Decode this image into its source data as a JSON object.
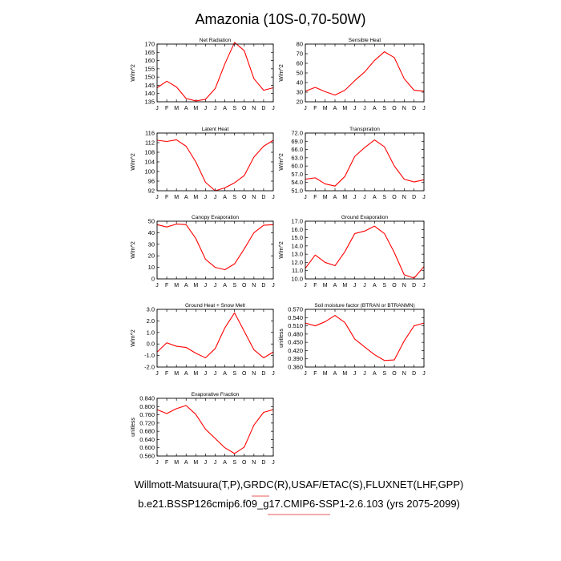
{
  "figure": {
    "title": "Amazonia (10S-0,70-50W)",
    "footer_line1": "Willmott-Matsuura(T,P),GRDC(R),USAF/ETAC(S),FLUXNET(LHF,GPP)",
    "footer_line2": "b.e21.BSSP126cmip6.f09_g17.CMIP6-SSP1-2.6.103 (yrs 2075-2099)"
  },
  "colors": {
    "series": "#ff0000",
    "axis": "#000000",
    "underline": "#e02020"
  },
  "chart_data": [
    {
      "type": "line",
      "title": "Net Radiation",
      "ylabel": "W/m^2",
      "categories": [
        "J",
        "F",
        "M",
        "A",
        "M",
        "J",
        "J",
        "A",
        "S",
        "O",
        "N",
        "D",
        "J"
      ],
      "ylim": [
        135,
        170
      ],
      "yticks": [
        "135",
        "140",
        "145",
        "150",
        "155",
        "160",
        "165",
        "170"
      ],
      "yticks_values": [
        135,
        140,
        145,
        150,
        155,
        160,
        165,
        170
      ],
      "series": [
        {
          "name": "Net Radiation",
          "values": [
            143.5,
            147.5,
            144,
            137,
            135.5,
            136.5,
            143,
            158,
            171,
            166,
            149,
            142,
            143.5
          ]
        }
      ]
    },
    {
      "type": "line",
      "title": "Sensible Heat",
      "ylabel": "W/m^2",
      "categories": [
        "J",
        "F",
        "M",
        "A",
        "M",
        "J",
        "J",
        "A",
        "S",
        "O",
        "N",
        "D",
        "J"
      ],
      "ylim": [
        20,
        80
      ],
      "yticks": [
        "20",
        "30",
        "40",
        "50",
        "60",
        "70",
        "80"
      ],
      "yticks_values": [
        20,
        30,
        40,
        50,
        60,
        70,
        80
      ],
      "series": [
        {
          "name": "Sensible Heat",
          "values": [
            31,
            35,
            30.5,
            27,
            32,
            42,
            51,
            63,
            72,
            66,
            44,
            32,
            31
          ]
        }
      ]
    },
    {
      "type": "line",
      "title": "Latent Heat",
      "ylabel": "W/m^2",
      "categories": [
        "J",
        "F",
        "M",
        "A",
        "M",
        "J",
        "J",
        "A",
        "S",
        "O",
        "N",
        "D",
        "J"
      ],
      "ylim": [
        92,
        116
      ],
      "yticks": [
        "92",
        "96",
        "100",
        "104",
        "108",
        "112",
        "116"
      ],
      "yticks_values": [
        92,
        96,
        100,
        104,
        108,
        112,
        116
      ],
      "series": [
        {
          "name": "Latent Heat",
          "values": [
            113,
            112.5,
            113.2,
            110.5,
            104,
            95.5,
            92,
            93.2,
            95.3,
            98.3,
            106,
            110.5,
            113
          ]
        }
      ]
    },
    {
      "type": "line",
      "title": "Transpiration",
      "ylabel": "W/m^2",
      "categories": [
        "J",
        "F",
        "M",
        "A",
        "M",
        "J",
        "J",
        "A",
        "S",
        "O",
        "N",
        "D",
        "J"
      ],
      "ylim": [
        51,
        72
      ],
      "yticks": [
        "51.0",
        "54.0",
        "57.0",
        "60.0",
        "63.0",
        "66.0",
        "69.0",
        "72.0"
      ],
      "yticks_values": [
        51,
        54,
        57,
        60,
        63,
        66,
        69,
        72
      ],
      "series": [
        {
          "name": "Transpiration",
          "values": [
            55.2,
            55.7,
            53.5,
            52.7,
            56.2,
            63.5,
            66.7,
            69.5,
            67,
            60,
            55.2,
            54.2,
            55
          ]
        }
      ]
    },
    {
      "type": "line",
      "title": "Canopy Evaporation",
      "ylabel": "W/m^2",
      "categories": [
        "J",
        "F",
        "M",
        "A",
        "M",
        "J",
        "J",
        "A",
        "S",
        "O",
        "N",
        "D",
        "J"
      ],
      "ylim": [
        0,
        50
      ],
      "yticks": [
        "0",
        "10",
        "20",
        "30",
        "40",
        "50"
      ],
      "yticks_values": [
        0,
        10,
        20,
        30,
        40,
        50
      ],
      "series": [
        {
          "name": "Canopy Evaporation",
          "values": [
            47,
            45,
            47.5,
            47,
            35,
            17,
            10,
            8,
            13,
            26,
            40,
            46.5,
            47
          ]
        }
      ]
    },
    {
      "type": "line",
      "title": "Ground Evaporation",
      "ylabel": "W/m^2",
      "categories": [
        "J",
        "F",
        "M",
        "A",
        "M",
        "J",
        "J",
        "A",
        "S",
        "O",
        "N",
        "D",
        "J"
      ],
      "ylim": [
        10,
        17
      ],
      "yticks": [
        "10.0",
        "11.0",
        "12.0",
        "13.0",
        "14.0",
        "15.0",
        "16.0",
        "17.0"
      ],
      "yticks_values": [
        10,
        11,
        12,
        13,
        14,
        15,
        16,
        17
      ],
      "series": [
        {
          "name": "Ground Evaporation",
          "values": [
            11.3,
            12.9,
            12,
            11.6,
            13.3,
            15.5,
            15.8,
            16.4,
            15.5,
            13.2,
            10.5,
            10.1,
            11.5
          ]
        }
      ]
    },
    {
      "type": "line",
      "title": "Ground Heat + Snow Melt",
      "ylabel": "W/m^2",
      "categories": [
        "J",
        "F",
        "M",
        "A",
        "M",
        "J",
        "J",
        "A",
        "S",
        "O",
        "N",
        "D",
        "J"
      ],
      "ylim": [
        -2,
        3
      ],
      "yticks": [
        "-2.0",
        "-1.0",
        "0.0",
        "1.0",
        "2.0",
        "3.0"
      ],
      "yticks_values": [
        -2,
        -1,
        0,
        1,
        2,
        3
      ],
      "series": [
        {
          "name": "Ground Heat + Snow Melt",
          "values": [
            -0.7,
            0.1,
            -0.2,
            -0.3,
            -0.8,
            -1.2,
            -0.4,
            1.4,
            2.7,
            1.1,
            -0.5,
            -1.2,
            -0.7
          ]
        }
      ]
    },
    {
      "type": "line",
      "title": "Soil moisture factor (BTRAN or BTRANMN)",
      "ylabel": "unitless",
      "categories": [
        "J",
        "F",
        "M",
        "A",
        "M",
        "J",
        "J",
        "A",
        "S",
        "O",
        "N",
        "D",
        "J"
      ],
      "ylim": [
        0.36,
        0.57
      ],
      "yticks": [
        "0.360",
        "0.390",
        "0.420",
        "0.450",
        "0.480",
        "0.510",
        "0.540",
        "0.570"
      ],
      "yticks_values": [
        0.36,
        0.39,
        0.42,
        0.45,
        0.48,
        0.51,
        0.54,
        0.57
      ],
      "series": [
        {
          "name": "Soil moisture factor",
          "values": [
            0.52,
            0.51,
            0.525,
            0.548,
            0.522,
            0.462,
            0.433,
            0.405,
            0.384,
            0.386,
            0.455,
            0.51,
            0.52
          ]
        }
      ]
    },
    {
      "type": "line",
      "title": "Evaporative Fraction",
      "ylabel": "unitless",
      "categories": [
        "J",
        "F",
        "M",
        "A",
        "M",
        "J",
        "J",
        "A",
        "S",
        "O",
        "N",
        "D",
        "J"
      ],
      "ylim": [
        0.56,
        0.84
      ],
      "yticks": [
        "0.560",
        "0.600",
        "0.640",
        "0.680",
        "0.720",
        "0.760",
        "0.800",
        "0.840"
      ],
      "yticks_values": [
        0.56,
        0.6,
        0.64,
        0.68,
        0.72,
        0.76,
        0.8,
        0.84
      ],
      "series": [
        {
          "name": "Evaporative Fraction",
          "values": [
            0.785,
            0.766,
            0.79,
            0.805,
            0.762,
            0.69,
            0.645,
            0.6,
            0.572,
            0.603,
            0.71,
            0.772,
            0.785
          ]
        }
      ]
    }
  ]
}
